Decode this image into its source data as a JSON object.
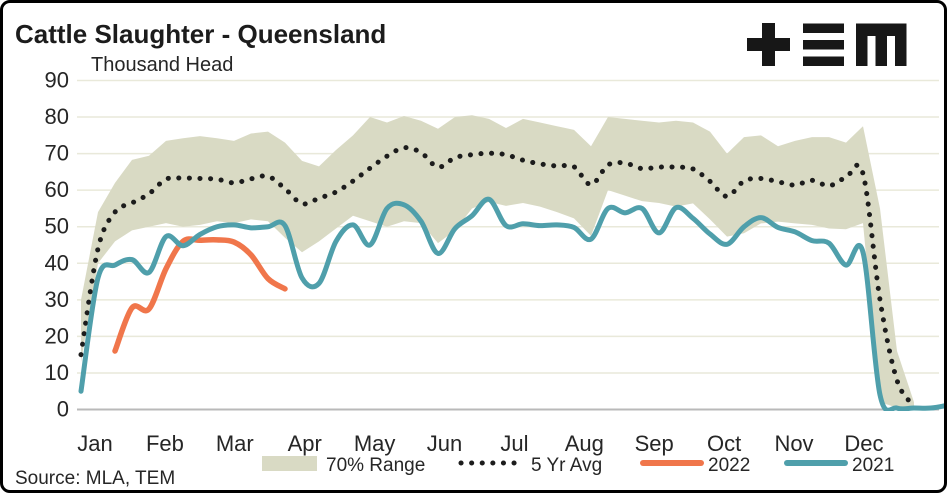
{
  "header": {
    "title": "Cattle Slaughter - Queensland",
    "unit_label": "Thousand Head",
    "logo_name": "TEM logo (plus, triple-bar, M glyphs)"
  },
  "source_note": "Source: MLA, TEM",
  "chart_data": {
    "type": "line",
    "title": "Cattle Slaughter - Queensland",
    "ylabel": "Thousand Head",
    "xlabel": "",
    "ylim": [
      0,
      90
    ],
    "yticks": [
      0,
      10,
      20,
      30,
      40,
      50,
      60,
      70,
      80,
      90
    ],
    "grid": "horizontal-only",
    "legend_position": "bottom",
    "x_months": [
      "Jan",
      "Feb",
      "Mar",
      "Apr",
      "May",
      "Jun",
      "Jul",
      "Aug",
      "Sep",
      "Oct",
      "Nov",
      "Dec"
    ],
    "x_unit": "week-of-year",
    "weeks": [
      1,
      2,
      3,
      4,
      5,
      6,
      7,
      8,
      9,
      10,
      11,
      12,
      13,
      14,
      15,
      16,
      17,
      18,
      19,
      20,
      21,
      22,
      23,
      24,
      25,
      26,
      27,
      28,
      29,
      30,
      31,
      32,
      33,
      34,
      35,
      36,
      37,
      38,
      39,
      40,
      41,
      42,
      43,
      44,
      45,
      46,
      47,
      48,
      49,
      50,
      51,
      52
    ],
    "series": [
      {
        "name": "70% Range",
        "type": "band",
        "color": "#d9dac4",
        "upper": [
          30,
          54,
          62,
          68.3,
          69.4,
          73.5,
          74.2,
          74.8,
          74.2,
          73.5,
          75.5,
          76,
          73,
          68,
          66.5,
          71,
          75,
          80,
          78.5,
          80.3,
          79,
          76.8,
          80,
          80.5,
          79.5,
          77,
          79.5,
          78.5,
          77.5,
          76.5,
          72,
          80,
          79.5,
          79,
          78.5,
          79,
          78.5,
          76,
          70,
          74.5,
          75,
          72,
          73.5,
          74.5,
          74.5,
          73,
          77.5,
          55,
          16,
          2,
          null,
          null
        ],
        "lower": [
          13,
          40,
          46,
          49,
          50,
          51,
          50,
          50.5,
          51.5,
          51,
          52,
          51.5,
          47,
          43,
          46,
          49.5,
          53,
          51.5,
          50,
          51.5,
          51,
          45.5,
          49,
          55,
          56.8,
          55.7,
          56.5,
          55.5,
          54,
          52.3,
          47.5,
          60,
          58.5,
          57,
          56.5,
          55.5,
          56.4,
          52,
          47.3,
          48.2,
          50.9,
          51.4,
          50.9,
          50.5,
          49.5,
          49.3,
          51,
          2,
          0.5,
          0,
          null,
          null
        ]
      },
      {
        "name": "5 Yr Avg",
        "type": "dotted-line",
        "color": "#1c1c1c",
        "values": [
          15,
          44,
          54,
          56.5,
          59,
          63,
          63.3,
          63.2,
          63,
          62,
          63.1,
          63.8,
          60.4,
          56.3,
          57.8,
          59.5,
          62.5,
          66,
          69.3,
          71.6,
          70.3,
          66.3,
          68.9,
          69.7,
          70.1,
          69.7,
          68.2,
          67.2,
          66.6,
          66.4,
          61.5,
          66.9,
          67.4,
          65.9,
          66.3,
          66.3,
          65.8,
          62.4,
          58.3,
          62.5,
          63.2,
          62.3,
          61.4,
          62.7,
          61.2,
          63.5,
          64.5,
          30,
          8,
          1,
          null,
          null
        ]
      },
      {
        "name": "2022",
        "type": "line",
        "color": "#f0764b",
        "values": [
          null,
          null,
          16,
          27.8,
          27.5,
          38.5,
          46,
          46.3,
          46.4,
          45.8,
          42.3,
          35.8,
          33,
          null,
          null,
          null,
          null,
          null,
          null,
          null,
          null,
          null,
          null,
          null,
          null,
          null,
          null,
          null,
          null,
          null,
          null,
          null,
          null,
          null,
          null,
          null,
          null,
          null,
          null,
          null,
          null,
          null,
          null,
          null,
          null,
          null,
          null,
          null,
          null,
          null,
          null,
          null
        ]
      },
      {
        "name": "2021",
        "type": "line",
        "color": "#4f9fab",
        "values": [
          5,
          36,
          39.5,
          41,
          37.5,
          47.3,
          44.8,
          47.9,
          50,
          50.5,
          49.7,
          50,
          50.3,
          36,
          34.5,
          46,
          50.5,
          45,
          55,
          56,
          51.5,
          42.7,
          49.5,
          53,
          57.5,
          50.3,
          50.8,
          50.3,
          50.5,
          49.8,
          46.6,
          55,
          53.8,
          55,
          48.3,
          55.2,
          52.3,
          48,
          45.2,
          50,
          52.5,
          49.8,
          48.6,
          46.2,
          45.5,
          39.5,
          43,
          4,
          0.4,
          0.4,
          0.4,
          1.2
        ]
      }
    ],
    "colors": {
      "grid": "#e9e9da",
      "zero_line": "#b9b9b9",
      "text": "#262626",
      "logo": "#171717"
    }
  }
}
